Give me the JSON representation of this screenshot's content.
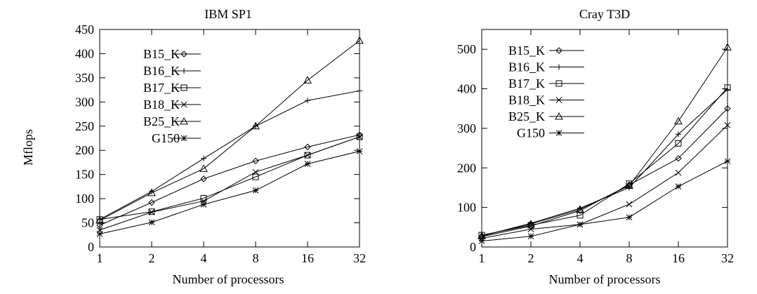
{
  "chart_data": [
    {
      "type": "line",
      "title": "IBM SP1",
      "xlabel": "Number of processors",
      "ylabel": "Mflops",
      "x": [
        1,
        2,
        4,
        8,
        16,
        32
      ],
      "x_scale": "log2",
      "ylim": [
        0,
        450
      ],
      "yticks": [
        0,
        50,
        100,
        150,
        200,
        250,
        300,
        350,
        400,
        450
      ],
      "grid": false,
      "legend": "top-left",
      "series": [
        {
          "name": "B15_K",
          "marker": "diamond",
          "values": [
            45,
            92,
            141,
            178,
            207,
            232
          ]
        },
        {
          "name": "B16_K",
          "marker": "plus",
          "values": [
            57,
            115,
            183,
            250,
            303,
            323
          ]
        },
        {
          "name": "B17_K",
          "marker": "square",
          "values": [
            57,
            73,
            101,
            145,
            190,
            228
          ]
        },
        {
          "name": "B18_K",
          "marker": "cross",
          "values": [
            35,
            72,
            95,
            155,
            190,
            228
          ]
        },
        {
          "name": "B25_K",
          "marker": "triangle",
          "values": [
            55,
            112,
            162,
            250,
            345,
            427
          ]
        },
        {
          "name": "G150",
          "marker": "star",
          "values": [
            27,
            51,
            88,
            117,
            172,
            198
          ]
        }
      ]
    },
    {
      "type": "line",
      "title": "Cray T3D",
      "xlabel": "Number of processors",
      "ylabel": "",
      "x": [
        1,
        2,
        4,
        8,
        16,
        32
      ],
      "x_scale": "log2",
      "ylim": [
        0,
        550
      ],
      "yticks": [
        0,
        100,
        200,
        300,
        400,
        500
      ],
      "grid": false,
      "legend": "top-left",
      "series": [
        {
          "name": "B15_K",
          "marker": "diamond",
          "values": [
            26,
            53,
            92,
            157,
            224,
            350
          ]
        },
        {
          "name": "B16_K",
          "marker": "plus",
          "values": [
            28,
            60,
            98,
            150,
            285,
            398
          ]
        },
        {
          "name": "B17_K",
          "marker": "square",
          "values": [
            30,
            55,
            80,
            160,
            262,
            403
          ]
        },
        {
          "name": "B18_K",
          "marker": "cross",
          "values": [
            22,
            45,
            57,
            108,
            188,
            308
          ]
        },
        {
          "name": "B25_K",
          "marker": "triangle",
          "values": [
            28,
            58,
            95,
            155,
            318,
            505
          ]
        },
        {
          "name": "G150",
          "marker": "star",
          "values": [
            15,
            27,
            57,
            75,
            153,
            217
          ]
        }
      ]
    }
  ]
}
